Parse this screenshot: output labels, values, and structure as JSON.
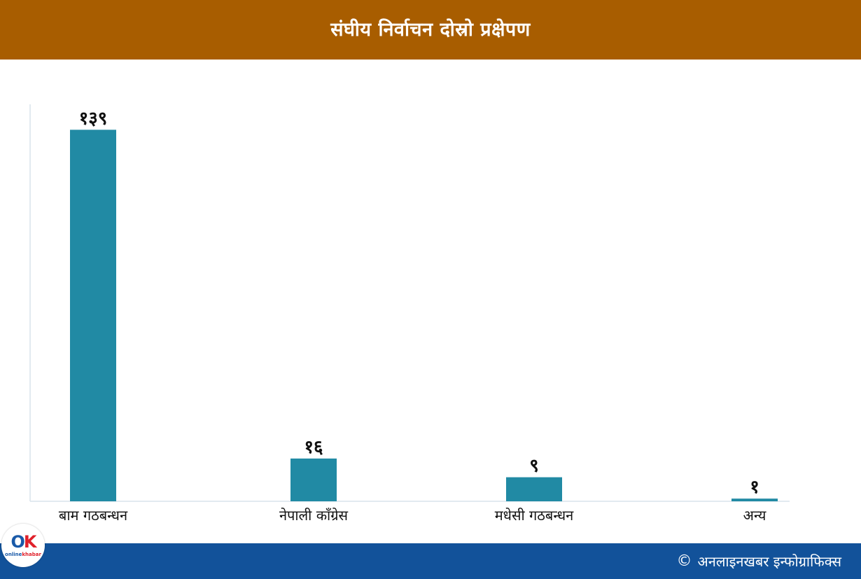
{
  "header": {
    "title": "संघीय निर्वाचन दोस्रो प्रक्षेपण"
  },
  "chart_data": {
    "type": "bar",
    "title": "संघीय निर्वाचन दोस्रो प्रक्षेपण",
    "xlabel": "",
    "ylabel": "",
    "categories": [
      "बाम गठबन्धन",
      "नेपाली काँग्रेस",
      "मधेसी गठबन्धन",
      "अन्य"
    ],
    "values": [
      139,
      16,
      9,
      1
    ],
    "value_labels": [
      "१३९",
      "१६",
      "९",
      "१"
    ],
    "ylim": [
      0,
      148
    ],
    "grid": false,
    "legend": "none",
    "bar_color": "#218aa4"
  },
  "footer": {
    "copyright_icon": "copyright-icon",
    "credit": "अनलाइनखबर इन्फोग्राफिक्स"
  },
  "logo": {
    "mark_o": "O",
    "mark_k": "K",
    "text_online": "online",
    "text_khabar": "khabar"
  },
  "colors": {
    "header_bg": "#a85d00",
    "footer_bg": "#12529a",
    "bar": "#218aa4",
    "axis": "#d9e4ec"
  }
}
